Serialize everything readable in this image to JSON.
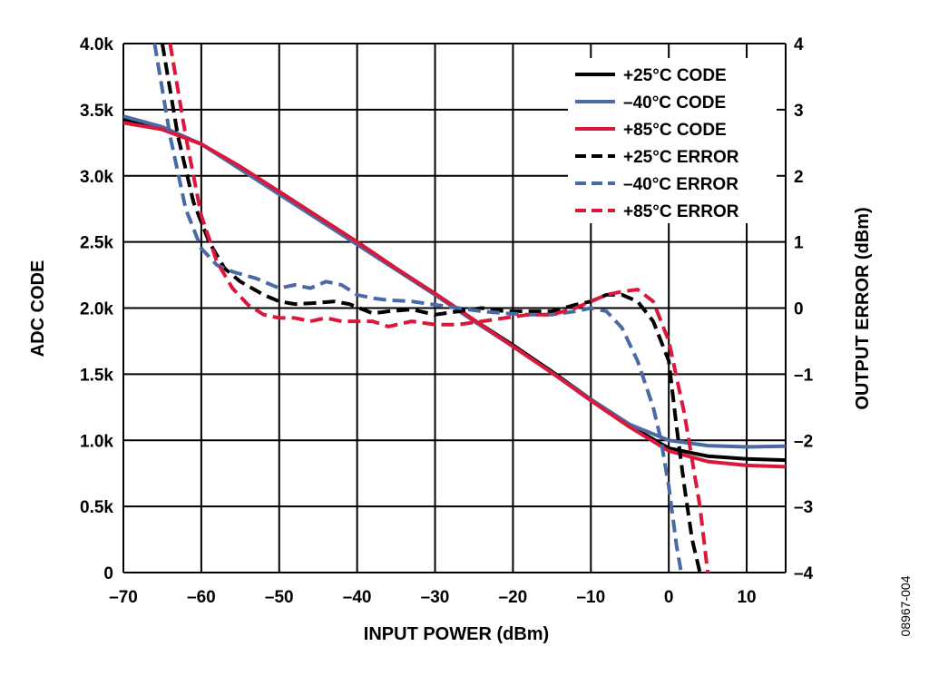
{
  "figure_id": "08967-004",
  "chart_data": {
    "type": "line",
    "title": "",
    "xlabel": "INPUT POWER (dBm)",
    "ylabel": "ADC CODE",
    "y2label": "OUTPUT ERROR (dBm)",
    "xlim": [
      -70,
      15
    ],
    "ylim": [
      0,
      4000
    ],
    "y2lim": [
      -4,
      4
    ],
    "xticks": [
      -70,
      -60,
      -50,
      -40,
      -30,
      -20,
      -10,
      0,
      10
    ],
    "xtick_labels": [
      "–70",
      "–60",
      "–50",
      "–40",
      "–30",
      "–20",
      "–10",
      "0",
      "10"
    ],
    "yticks": [
      0,
      500,
      1000,
      1500,
      2000,
      2500,
      3000,
      3500,
      4000
    ],
    "ytick_labels": [
      "0",
      "0.5k",
      "1.0k",
      "1.5k",
      "2.0k",
      "2.5k",
      "3.0k",
      "3.5k",
      "4.0k"
    ],
    "y2ticks": [
      -4,
      -3,
      -2,
      -1,
      0,
      1,
      2,
      3,
      4
    ],
    "y2tick_labels": [
      "–4",
      "–3",
      "–2",
      "–1",
      "0",
      "1",
      "2",
      "3",
      "4"
    ],
    "grid": true,
    "legend_position": "top-right",
    "series": [
      {
        "name": "+25°C CODE",
        "axis": "left",
        "color": "#000000",
        "dash": false,
        "x": [
          -70,
          -65,
          -60,
          -55,
          -50,
          -45,
          -40,
          -35,
          -30,
          -25,
          -20,
          -15,
          -10,
          -5,
          0,
          5,
          10,
          15
        ],
        "y": [
          3430,
          3360,
          3240,
          3060,
          2880,
          2690,
          2500,
          2300,
          2110,
          1910,
          1720,
          1520,
          1310,
          1110,
          940,
          880,
          860,
          850
        ]
      },
      {
        "name": "–40°C CODE",
        "axis": "left",
        "color": "#4a6aa5",
        "dash": false,
        "x": [
          -70,
          -65,
          -60,
          -55,
          -50,
          -45,
          -40,
          -35,
          -30,
          -25,
          -20,
          -15,
          -10,
          -5,
          0,
          5,
          10,
          15
        ],
        "y": [
          3450,
          3370,
          3240,
          3050,
          2860,
          2670,
          2480,
          2290,
          2100,
          1900,
          1710,
          1510,
          1310,
          1120,
          1000,
          960,
          950,
          955
        ]
      },
      {
        "name": "+85°C CODE",
        "axis": "left",
        "color": "#d9183b",
        "dash": false,
        "x": [
          -70,
          -65,
          -60,
          -55,
          -50,
          -45,
          -40,
          -35,
          -30,
          -25,
          -20,
          -15,
          -10,
          -5,
          0,
          5,
          10,
          15
        ],
        "y": [
          3400,
          3350,
          3240,
          3070,
          2880,
          2690,
          2500,
          2300,
          2110,
          1910,
          1710,
          1510,
          1300,
          1100,
          920,
          840,
          810,
          800
        ]
      },
      {
        "name": "+25°C ERROR",
        "axis": "right",
        "color": "#000000",
        "dash": true,
        "x": [
          -65,
          -63,
          -61,
          -59,
          -57,
          -55,
          -52,
          -50,
          -48,
          -45,
          -43,
          -41,
          -38,
          -36,
          -33,
          -30,
          -27,
          -24,
          -21,
          -18,
          -15,
          -12,
          -10,
          -8,
          -6,
          -4,
          -2,
          0,
          1,
          2,
          3,
          4
        ],
        "y": [
          4.0,
          2.6,
          1.6,
          1.0,
          0.6,
          0.4,
          0.2,
          0.1,
          0.06,
          0.08,
          0.1,
          0.06,
          -0.08,
          -0.05,
          -0.02,
          -0.1,
          -0.05,
          0.0,
          -0.05,
          -0.05,
          -0.05,
          0.05,
          0.1,
          0.2,
          0.2,
          0.1,
          -0.2,
          -0.8,
          -1.8,
          -2.7,
          -3.5,
          -4.0
        ]
      },
      {
        "name": "–40°C ERROR",
        "axis": "right",
        "color": "#4a6aa5",
        "dash": true,
        "x": [
          -66,
          -64,
          -62,
          -60,
          -58,
          -56,
          -53,
          -50,
          -48,
          -46,
          -44,
          -42,
          -40,
          -38,
          -36,
          -33,
          -30,
          -27,
          -24,
          -21,
          -18,
          -15,
          -12,
          -10,
          -8,
          -6,
          -4,
          -2,
          -1,
          0,
          1,
          1.6
        ],
        "y": [
          4.0,
          2.6,
          1.5,
          0.9,
          0.65,
          0.55,
          0.45,
          0.3,
          0.35,
          0.3,
          0.4,
          0.35,
          0.2,
          0.15,
          0.12,
          0.1,
          0.05,
          0.0,
          -0.05,
          -0.08,
          -0.1,
          -0.1,
          -0.05,
          0.0,
          -0.05,
          -0.3,
          -0.8,
          -1.5,
          -2.0,
          -2.7,
          -3.6,
          -4.0
        ]
      },
      {
        "name": "+85°C ERROR",
        "axis": "right",
        "color": "#d9183b",
        "dash": true,
        "x": [
          -64,
          -62,
          -60,
          -58,
          -56,
          -54,
          -52,
          -50,
          -48,
          -46,
          -44,
          -42,
          -40,
          -38,
          -36,
          -33,
          -30,
          -27,
          -24,
          -21,
          -18,
          -15,
          -12,
          -10,
          -8,
          -6,
          -4,
          -2,
          0,
          2,
          4,
          5
        ],
        "y": [
          4.0,
          2.6,
          1.4,
          0.7,
          0.3,
          0.05,
          -0.1,
          -0.15,
          -0.15,
          -0.2,
          -0.15,
          -0.2,
          -0.2,
          -0.2,
          -0.28,
          -0.2,
          -0.25,
          -0.25,
          -0.2,
          -0.15,
          -0.1,
          -0.1,
          0.0,
          0.1,
          0.2,
          0.25,
          0.28,
          0.1,
          -0.5,
          -1.6,
          -3.0,
          -4.0
        ]
      }
    ]
  }
}
